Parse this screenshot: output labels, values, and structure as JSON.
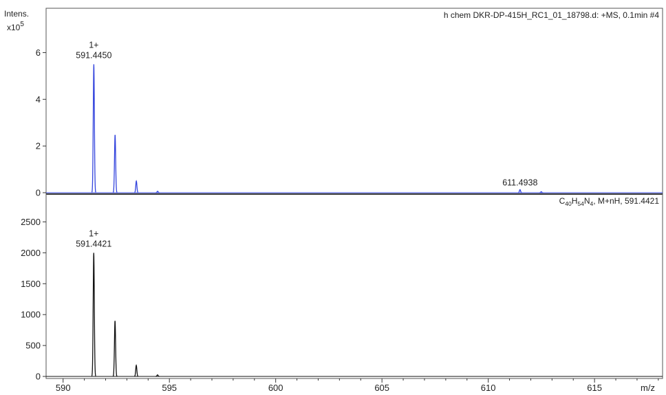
{
  "chart_data": [
    {
      "type": "line",
      "panel": "top",
      "color": "#3344dd",
      "ylabel": "Intens.",
      "y_multiplier_base": "x10",
      "y_multiplier_exp": "5",
      "header": "h chem DKR-DP-415H_RC1_01_18798.d: +MS, 0.1min #4",
      "xlim": [
        589.2,
        618.2
      ],
      "ylim": [
        0,
        7.9
      ],
      "yticks": [
        0,
        2,
        4,
        6
      ],
      "peaks": [
        {
          "x": 591.445,
          "y": 5.5
        },
        {
          "x": 592.445,
          "y": 2.48
        },
        {
          "x": 593.445,
          "y": 0.5
        },
        {
          "x": 594.445,
          "y": 0.06
        },
        {
          "x": 611.4938,
          "y": 0.13
        },
        {
          "x": 612.4938,
          "y": 0.04
        }
      ],
      "annotations": [
        {
          "x": 591.445,
          "charge": "1+",
          "mz": "591.4450"
        },
        {
          "x": 611.4938,
          "charge": "",
          "mz": "611.4938"
        }
      ]
    },
    {
      "type": "line",
      "panel": "bottom",
      "color": "#111111",
      "header_formula_parts": [
        "C",
        "40",
        "H",
        "54",
        "N",
        "4"
      ],
      "header_suffix": ", M+nH, 591.4421",
      "xlabel": "m/z",
      "xlim": [
        589.2,
        618.2
      ],
      "ylim": [
        0,
        2950
      ],
      "yticks": [
        0,
        500,
        1000,
        1500,
        2000,
        2500
      ],
      "xticks": [
        590,
        595,
        600,
        605,
        610,
        615
      ],
      "peaks": [
        {
          "x": 591.4421,
          "y": 2000
        },
        {
          "x": 592.4421,
          "y": 900
        },
        {
          "x": 593.4421,
          "y": 180
        },
        {
          "x": 594.4421,
          "y": 25
        }
      ],
      "annotations": [
        {
          "x": 591.4421,
          "charge": "1+",
          "mz": "591.4421"
        }
      ]
    }
  ]
}
